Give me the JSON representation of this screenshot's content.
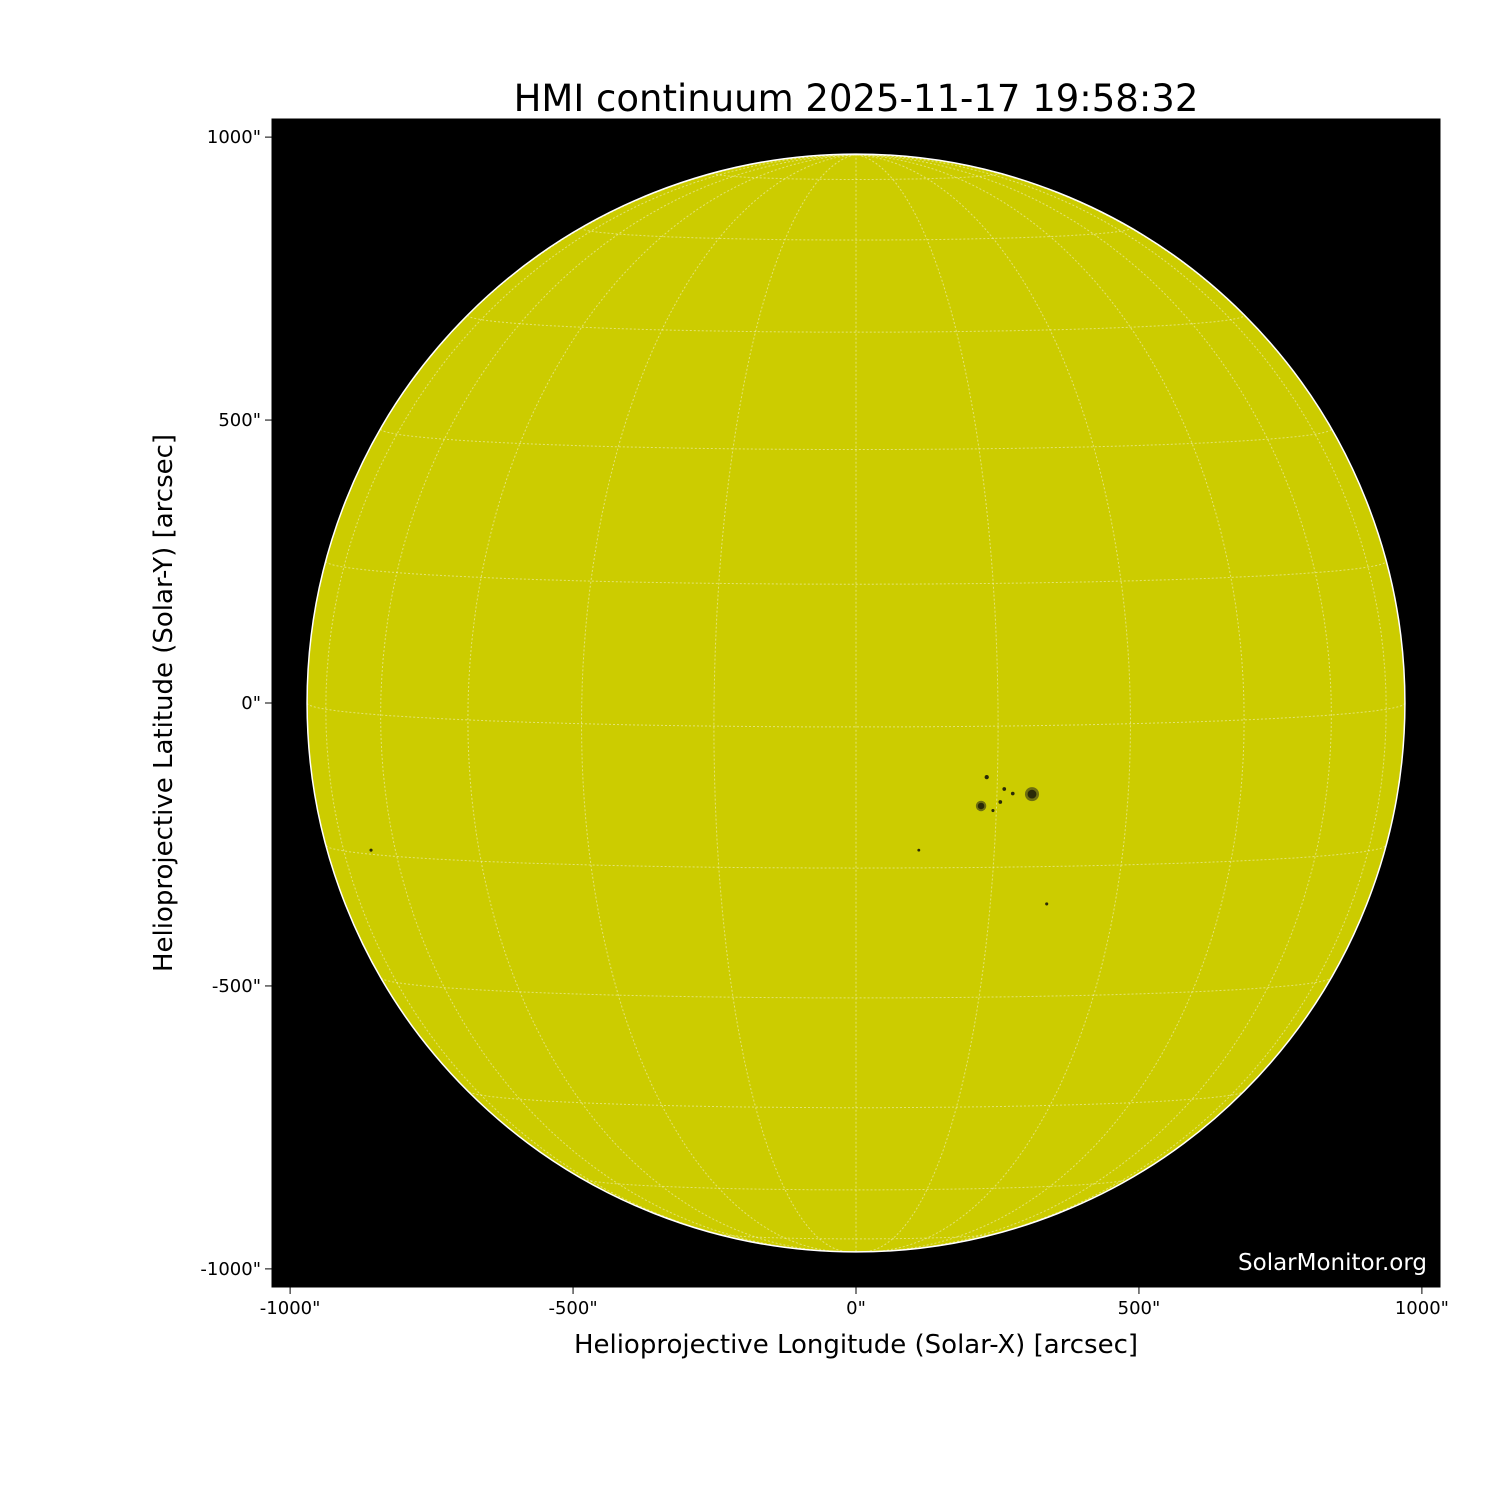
{
  "chart_data": {
    "type": "image",
    "title": "HMI continuum 2025-11-17 19:58:32",
    "xlabel": "Helioprojective Longitude (Solar-X) [arcsec]",
    "ylabel": "Helioprojective Latitude (Solar-Y) [arcsec]",
    "xlim": [
      -1032,
      1032
    ],
    "ylim": [
      -1032,
      1032
    ],
    "x_ticks": [
      "-1000\"",
      "-500\"",
      "0\"",
      "500\"",
      "1000\""
    ],
    "x_tick_values": [
      -1000,
      -500,
      0,
      500,
      1000
    ],
    "y_ticks": [
      "1000\"",
      "500\"",
      "0\"",
      "-500\"",
      "-1000\""
    ],
    "y_tick_values": [
      1000,
      500,
      0,
      -500,
      -1000
    ],
    "solar_radius_arcsec": 970,
    "grid": {
      "spacing_deg": 15,
      "b0_deg": 2.5
    },
    "disk_color": "#cccc00",
    "background_color": "#000000",
    "watermark": "SolarMonitor.org",
    "features": [
      {
        "x": 311,
        "y": -161,
        "size": 12
      },
      {
        "x": 221,
        "y": -182,
        "size": 8
      },
      {
        "x": 231,
        "y": -131,
        "size": 4
      },
      {
        "x": 262,
        "y": -152,
        "size": 3
      },
      {
        "x": 277,
        "y": -160,
        "size": 3
      },
      {
        "x": 255,
        "y": -175,
        "size": 3
      },
      {
        "x": 242,
        "y": -190,
        "size": 2
      },
      {
        "x": 337,
        "y": -355,
        "size": 2
      },
      {
        "x": 111,
        "y": -260,
        "size": 1.5
      },
      {
        "x": -857,
        "y": -260,
        "size": 2
      }
    ]
  }
}
